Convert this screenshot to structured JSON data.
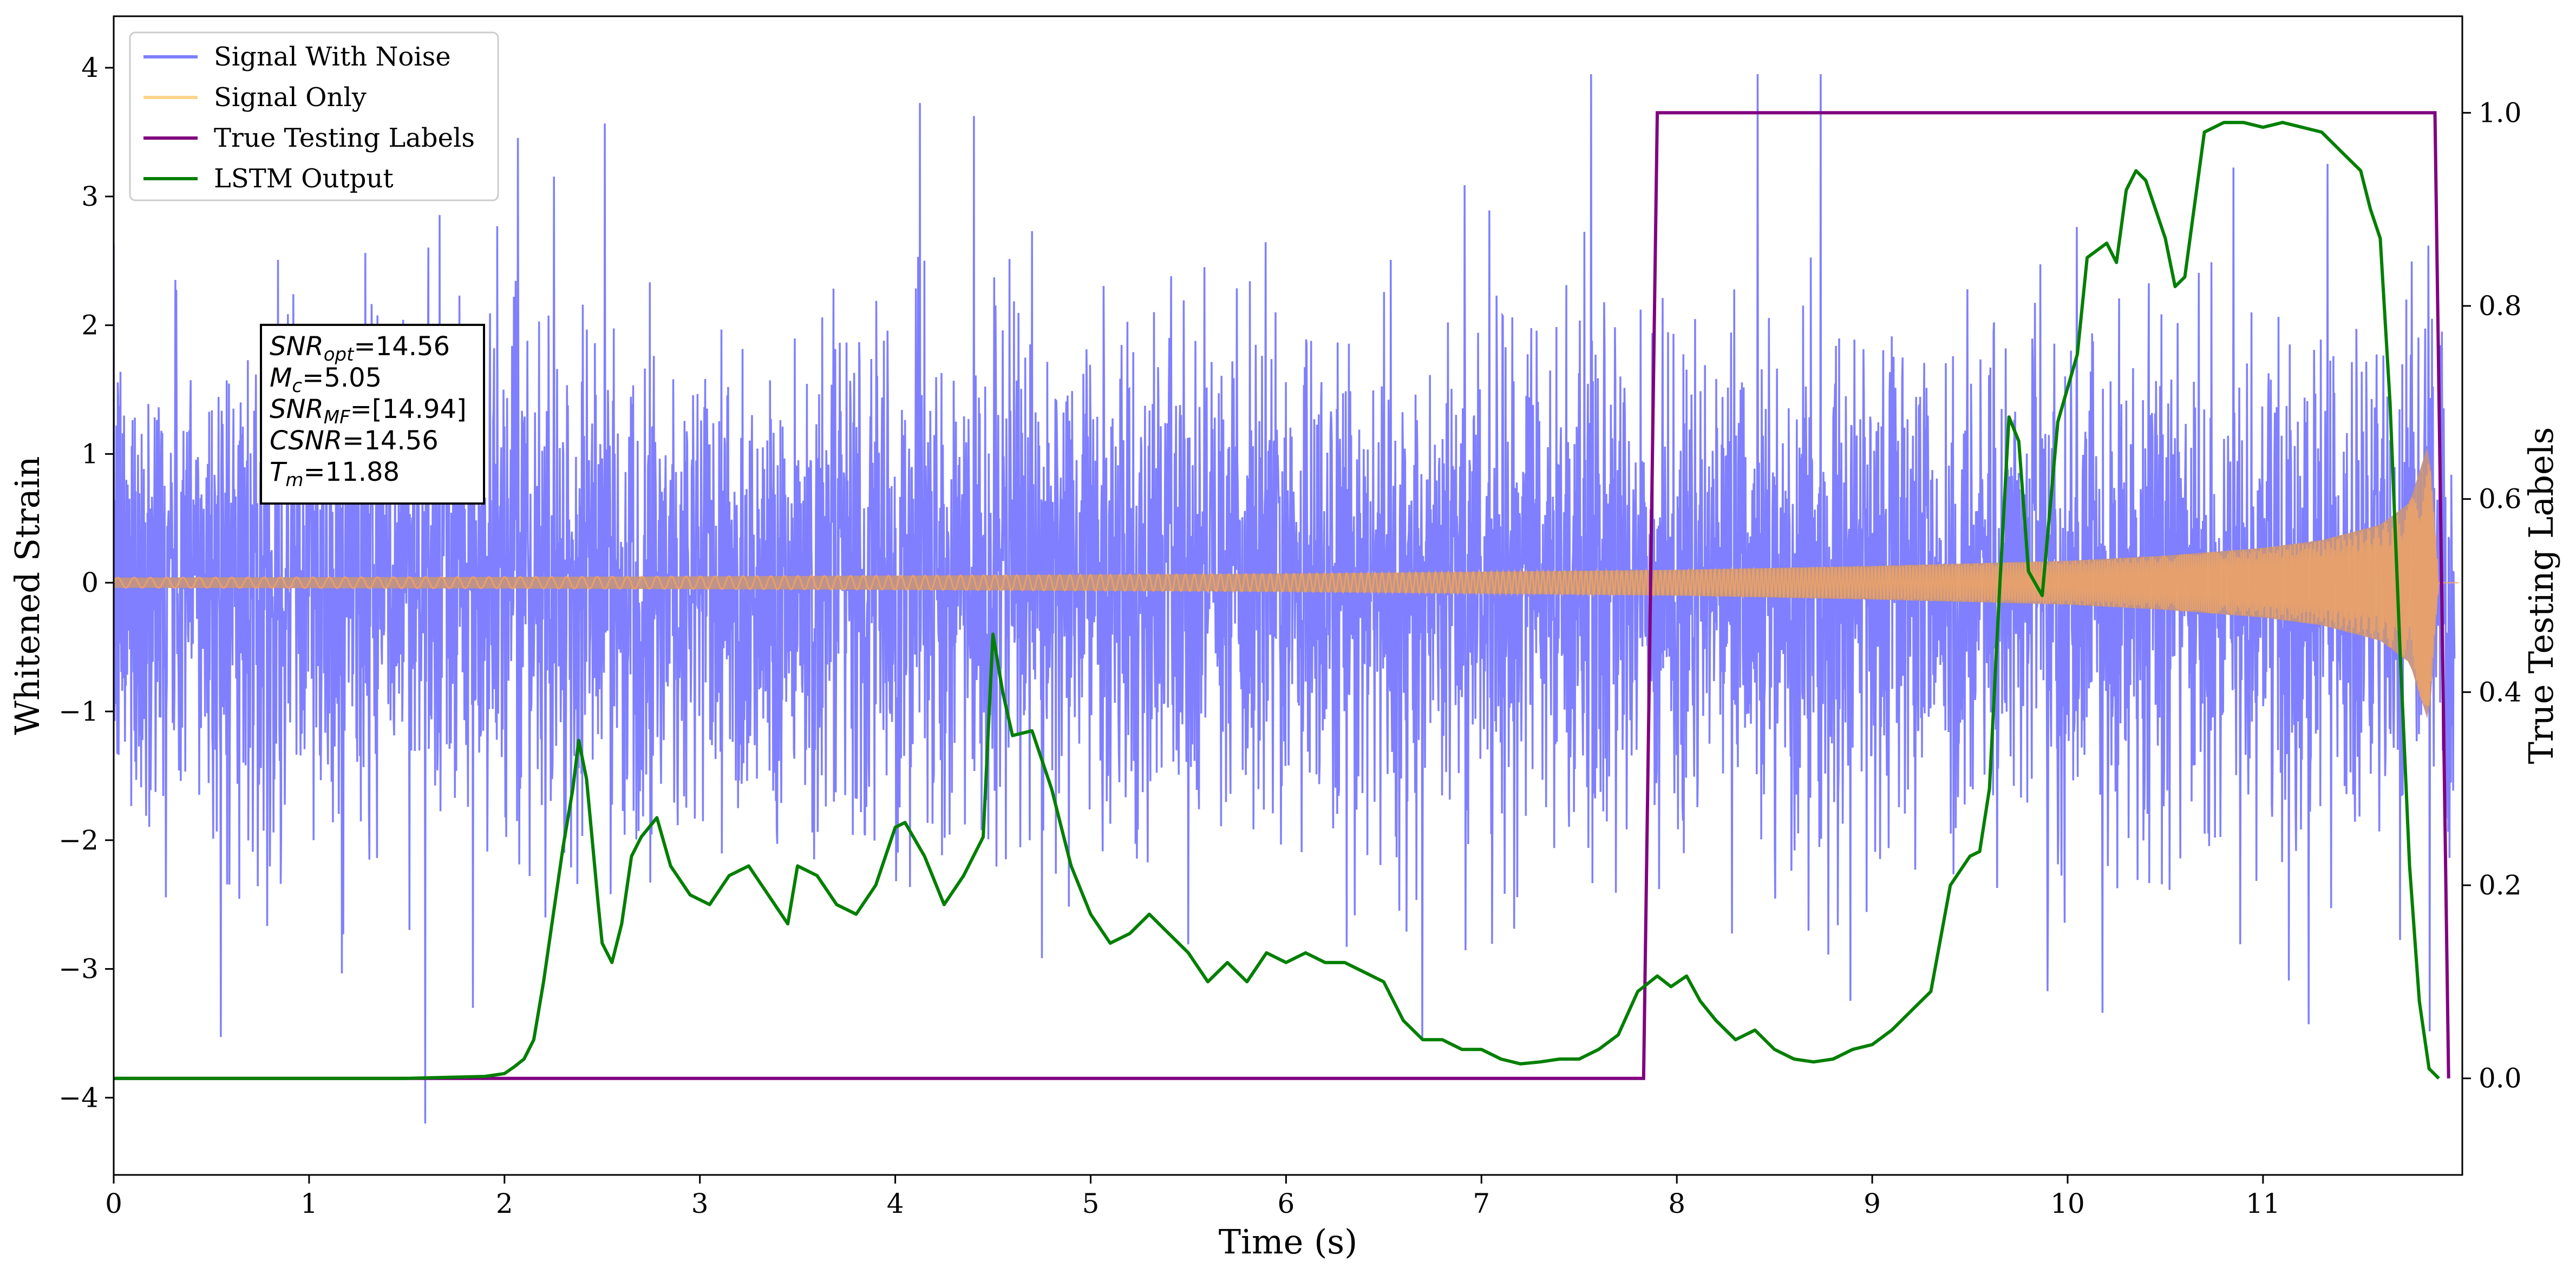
{
  "chart_data": {
    "type": "line",
    "title": "",
    "xlabel": "Time (s)",
    "ylabel": "Whitened Strain",
    "y2label": "True Testing Labels",
    "xlim": [
      0,
      12
    ],
    "ylim": [
      -4.6,
      4.4
    ],
    "y2lim": [
      -0.1,
      1.1
    ],
    "xticks": [
      "0",
      "1",
      "2",
      "3",
      "4",
      "5",
      "6",
      "7",
      "8",
      "9",
      "10",
      "11"
    ],
    "yticks": [
      "−4",
      "−3",
      "−2",
      "−1",
      "0",
      "1",
      "2",
      "3",
      "4"
    ],
    "y2ticks": [
      "0.0",
      "0.2",
      "0.4",
      "0.6",
      "0.8",
      "1.0"
    ],
    "legend_position": "top-left",
    "legend": [
      "Signal With Noise",
      "Signal Only",
      "True Testing Labels",
      "LSTM Output"
    ],
    "colors": {
      "signal_with_noise": "#7f7fff",
      "signal_only": "#f5a663",
      "true_labels": "#800080",
      "lstm_output": "#007f00"
    },
    "series": [
      {
        "name": "Signal With Noise",
        "axis": "left",
        "description_stats": {
          "typical_amplitude": 1.6,
          "max_peak": 3.95,
          "min_peak": -4.2
        }
      },
      {
        "name": "Signal Only",
        "axis": "left",
        "envelope": {
          "x": [
            0,
            2,
            4,
            6,
            8,
            9,
            10,
            10.5,
            11,
            11.3,
            11.6,
            11.75,
            11.85,
            11.9
          ],
          "amp": [
            0.04,
            0.045,
            0.055,
            0.07,
            0.1,
            0.13,
            0.17,
            0.21,
            0.27,
            0.33,
            0.45,
            0.62,
            1.1,
            0
          ]
        }
      },
      {
        "name": "True Testing Labels",
        "axis": "right",
        "x": [
          0,
          7.83,
          7.9,
          11.88,
          11.95
        ],
        "y": [
          0,
          0,
          1,
          1,
          0
        ]
      },
      {
        "name": "LSTM Output",
        "axis": "right",
        "x": [
          0,
          1.5,
          1.9,
          2.0,
          2.05,
          2.1,
          2.15,
          2.2,
          2.25,
          2.3,
          2.35,
          2.38,
          2.42,
          2.48,
          2.5,
          2.55,
          2.6,
          2.65,
          2.7,
          2.78,
          2.85,
          2.95,
          3.05,
          3.15,
          3.25,
          3.35,
          3.45,
          3.5,
          3.6,
          3.7,
          3.8,
          3.9,
          4.0,
          4.05,
          4.15,
          4.25,
          4.35,
          4.45,
          4.5,
          4.55,
          4.6,
          4.7,
          4.8,
          4.9,
          5.0,
          5.1,
          5.2,
          5.3,
          5.4,
          5.5,
          5.6,
          5.7,
          5.8,
          5.9,
          6.0,
          6.1,
          6.2,
          6.3,
          6.4,
          6.5,
          6.6,
          6.7,
          6.8,
          6.9,
          7.0,
          7.1,
          7.2,
          7.3,
          7.4,
          7.5,
          7.6,
          7.7,
          7.8,
          7.9,
          7.97,
          8.05,
          8.12,
          8.2,
          8.3,
          8.4,
          8.5,
          8.6,
          8.7,
          8.8,
          8.9,
          9.0,
          9.1,
          9.2,
          9.3,
          9.4,
          9.5,
          9.55,
          9.6,
          9.65,
          9.7,
          9.75,
          9.8,
          9.87,
          9.95,
          10.05,
          10.1,
          10.2,
          10.25,
          10.3,
          10.35,
          10.4,
          10.45,
          10.5,
          10.55,
          10.6,
          10.7,
          10.8,
          10.9,
          11.0,
          11.1,
          11.2,
          11.3,
          11.4,
          11.5,
          11.55,
          11.6,
          11.65,
          11.7,
          11.75,
          11.8,
          11.85,
          11.9
        ],
        "y": [
          0,
          0,
          0.002,
          0.005,
          0.012,
          0.02,
          0.04,
          0.1,
          0.17,
          0.24,
          0.3,
          0.35,
          0.31,
          0.18,
          0.14,
          0.12,
          0.16,
          0.23,
          0.25,
          0.27,
          0.22,
          0.19,
          0.18,
          0.21,
          0.22,
          0.19,
          0.16,
          0.22,
          0.21,
          0.18,
          0.17,
          0.2,
          0.26,
          0.265,
          0.23,
          0.18,
          0.21,
          0.25,
          0.46,
          0.4,
          0.355,
          0.36,
          0.3,
          0.22,
          0.17,
          0.14,
          0.15,
          0.17,
          0.15,
          0.13,
          0.1,
          0.12,
          0.1,
          0.13,
          0.12,
          0.13,
          0.12,
          0.12,
          0.11,
          0.1,
          0.06,
          0.04,
          0.04,
          0.03,
          0.03,
          0.02,
          0.015,
          0.017,
          0.02,
          0.02,
          0.03,
          0.045,
          0.09,
          0.106,
          0.095,
          0.106,
          0.08,
          0.06,
          0.04,
          0.05,
          0.03,
          0.02,
          0.017,
          0.02,
          0.03,
          0.035,
          0.05,
          0.07,
          0.09,
          0.2,
          0.23,
          0.235,
          0.3,
          0.5,
          0.685,
          0.66,
          0.525,
          0.5,
          0.68,
          0.75,
          0.85,
          0.865,
          0.845,
          0.92,
          0.94,
          0.93,
          0.9,
          0.87,
          0.82,
          0.83,
          0.98,
          0.99,
          0.99,
          0.985,
          0.99,
          0.985,
          0.98,
          0.96,
          0.94,
          0.9,
          0.87,
          0.7,
          0.45,
          0.22,
          0.08,
          0.01,
          0.0
        ]
      }
    ],
    "annotation": {
      "lines": [
        {
          "sym": "SNR",
          "sub": "opt",
          "val": "=14.56"
        },
        {
          "sym": "M",
          "sub": "c",
          "val": "=5.05"
        },
        {
          "sym": "SNR",
          "sub": "MF",
          "val": "=[14.94]"
        },
        {
          "sym": "CSNR",
          "sub": "",
          "val": "=14.56"
        },
        {
          "sym": "T",
          "sub": "m",
          "val": "=11.88"
        }
      ]
    }
  }
}
